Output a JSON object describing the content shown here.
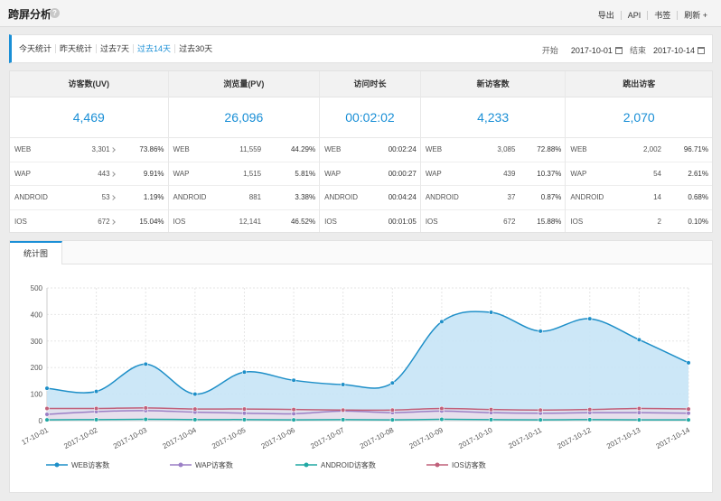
{
  "header": {
    "title": "跨屏分析",
    "help_icon": "?",
    "actions": [
      "导出",
      "API",
      "书签",
      "刷新 +"
    ]
  },
  "periods": [
    {
      "label": "今天统计",
      "active": false
    },
    {
      "label": "昨天统计",
      "active": false
    },
    {
      "label": "过去7天",
      "active": false
    },
    {
      "label": "过去14天",
      "active": true
    },
    {
      "label": "过去30天",
      "active": false
    }
  ],
  "range": {
    "start_label": "开始",
    "start": "2017-10-01",
    "end_label": "结束",
    "end": "2017-10-14"
  },
  "stats": [
    {
      "title": "访客数(UV)",
      "total": "4,469",
      "rows": [
        {
          "label": "WEB",
          "value": "3,301",
          "pct": "73.86%"
        },
        {
          "label": "WAP",
          "value": "443",
          "pct": "9.91%"
        },
        {
          "label": "ANDROID",
          "value": "53",
          "pct": "1.19%"
        },
        {
          "label": "IOS",
          "value": "672",
          "pct": "15.04%"
        }
      ]
    },
    {
      "title": "浏览量(PV)",
      "total": "26,096",
      "rows": [
        {
          "label": "WEB",
          "value": "11,559",
          "pct": "44.29%"
        },
        {
          "label": "WAP",
          "value": "1,515",
          "pct": "5.81%"
        },
        {
          "label": "ANDROID",
          "value": "881",
          "pct": "3.38%"
        },
        {
          "label": "IOS",
          "value": "12,141",
          "pct": "46.52%"
        }
      ]
    },
    {
      "title": "访问时长",
      "total": "00:02:02",
      "rows": [
        {
          "label": "WEB",
          "value": "00:02:24",
          "pct": ""
        },
        {
          "label": "WAP",
          "value": "00:00:27",
          "pct": ""
        },
        {
          "label": "ANDROID",
          "value": "00:04:24",
          "pct": ""
        },
        {
          "label": "IOS",
          "value": "00:01:05",
          "pct": ""
        }
      ]
    },
    {
      "title": "新访客数",
      "total": "4,233",
      "rows": [
        {
          "label": "WEB",
          "value": "3,085",
          "pct": "72.88%"
        },
        {
          "label": "WAP",
          "value": "439",
          "pct": "10.37%"
        },
        {
          "label": "ANDROID",
          "value": "37",
          "pct": "0.87%"
        },
        {
          "label": "IOS",
          "value": "672",
          "pct": "15.88%"
        }
      ]
    },
    {
      "title": "跳出访客",
      "total": "2,070",
      "rows": [
        {
          "label": "WEB",
          "value": "2,002",
          "pct": "96.71%"
        },
        {
          "label": "WAP",
          "value": "54",
          "pct": "2.61%"
        },
        {
          "label": "ANDROID",
          "value": "14",
          "pct": "0.68%"
        },
        {
          "label": "IOS",
          "value": "2",
          "pct": "0.10%"
        }
      ]
    }
  ],
  "chart_tab": "统计图",
  "colors": {
    "accent": "#1a8fd6",
    "web": "#1e8fc8",
    "wap": "#9b7fc6",
    "android": "#20a8a4",
    "ios": "#c0607a"
  },
  "chart_data": {
    "type": "area",
    "categories": [
      "17-10-01",
      "2017-10-02",
      "2017-10-03",
      "2017-10-04",
      "2017-10-05",
      "2017-10-06",
      "2017-10-07",
      "2017-10-08",
      "2017-10-09",
      "2017-10-10",
      "2017-10-11",
      "2017-10-12",
      "2017-10-13",
      "2017-10-14"
    ],
    "ylim": [
      0,
      500
    ],
    "yticks": [
      0,
      100,
      200,
      300,
      400,
      500
    ],
    "grid": true,
    "legend_position": "bottom",
    "series": [
      {
        "name": "WEB访客数",
        "values": [
          122,
          110,
          213,
          100,
          183,
          152,
          136,
          142,
          373,
          408,
          337,
          384,
          305,
          218
        ]
      },
      {
        "name": "WAP访客数",
        "values": [
          24,
          34,
          38,
          32,
          28,
          26,
          36,
          30,
          36,
          30,
          28,
          30,
          30,
          28
        ]
      },
      {
        "name": "ANDROID访客数",
        "values": [
          3,
          4,
          5,
          4,
          4,
          3,
          4,
          3,
          5,
          4,
          3,
          4,
          3,
          3
        ]
      },
      {
        "name": "IOS访客数",
        "values": [
          46,
          46,
          48,
          44,
          44,
          42,
          40,
          40,
          46,
          42,
          40,
          42,
          46,
          44
        ]
      }
    ]
  }
}
